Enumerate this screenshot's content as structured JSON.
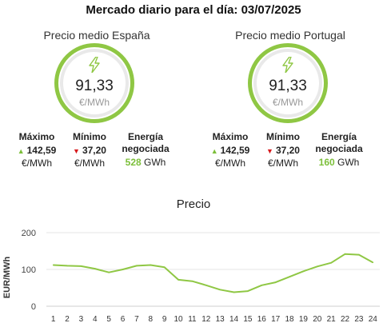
{
  "title": "Mercado diario para el día: 03/07/2025",
  "panels": [
    {
      "heading": "Precio medio España",
      "value": "91,33",
      "unit": "€/MWh",
      "max_label": "Máximo",
      "max_value": "142,59",
      "max_unit": "€/MWh",
      "min_label": "Mínimo",
      "min_value": "37,20",
      "min_unit": "€/MWh",
      "energy_label_1": "Energía",
      "energy_label_2": "negociada",
      "energy_value": "528",
      "energy_unit": "GWh"
    },
    {
      "heading": "Precio medio Portugal",
      "value": "91,33",
      "unit": "€/MWh",
      "max_label": "Máximo",
      "max_value": "142,59",
      "max_unit": "€/MWh",
      "min_label": "Mínimo",
      "min_value": "37,20",
      "min_unit": "€/MWh",
      "energy_label_1": "Energía",
      "energy_label_2": "negociada",
      "energy_value": "160",
      "energy_unit": "GWh"
    }
  ],
  "icons": {
    "gauge": "lightning-bolt-icon",
    "max": "triangle-up-icon",
    "min": "triangle-down-icon"
  },
  "colors": {
    "gauge_ring": "#8fc744",
    "accent_green": "#7cbf3a",
    "down_red": "#d7191c",
    "line": "#8fc744"
  },
  "chart_data": {
    "type": "line",
    "title": "Precio",
    "xlabel": "",
    "ylabel": "EUR/MWh",
    "x": [
      1,
      2,
      3,
      4,
      5,
      6,
      7,
      8,
      9,
      10,
      11,
      12,
      13,
      14,
      15,
      16,
      17,
      18,
      19,
      20,
      21,
      22,
      23,
      24
    ],
    "series": [
      {
        "values": [
          112,
          110,
          109,
          102,
          92,
          100,
          110,
          112,
          106,
          72,
          68,
          57,
          45,
          38,
          41,
          57,
          65,
          80,
          95,
          108,
          118,
          142,
          140,
          119
        ]
      }
    ],
    "ylim": [
      0,
      200
    ],
    "yticks": [
      0,
      100,
      200
    ],
    "grid": true,
    "legend": "none"
  }
}
